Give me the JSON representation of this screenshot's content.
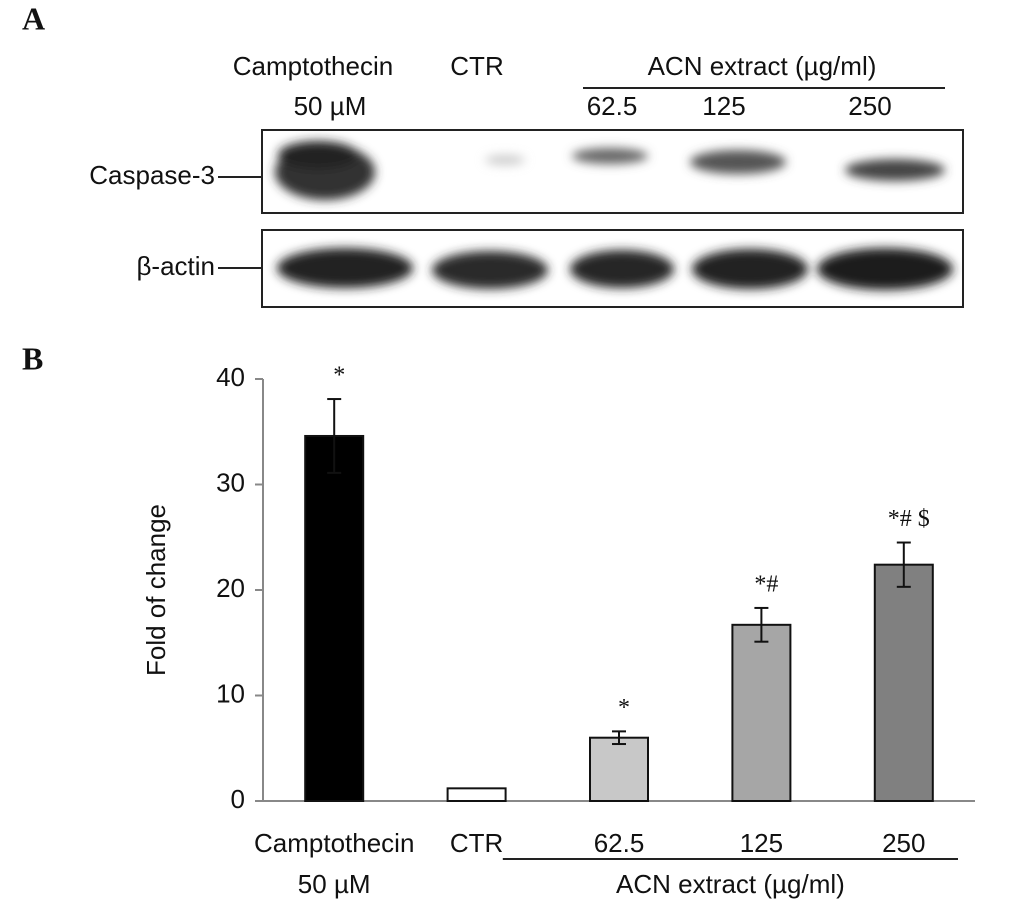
{
  "panel_labels": [
    "A",
    "B"
  ],
  "blot": {
    "treatment_labels": [
      "Camptothecin",
      "CTR"
    ],
    "dose_label": "50 µM",
    "group_label": "ACN extract (µg/ml)",
    "concentrations": [
      "62.5",
      "125",
      "250"
    ],
    "proteins": [
      "Caspase-3",
      "β-actin"
    ]
  },
  "chart_data": {
    "type": "bar",
    "categories": [
      "Camptothecin",
      "CTR",
      "62.5",
      "125",
      "250"
    ],
    "category_sublabels": [
      "50 µM",
      null,
      null,
      null,
      null
    ],
    "x_group_label": "ACN extract (µg/ml)",
    "values": [
      34.6,
      1.2,
      6.0,
      16.7,
      22.4
    ],
    "errors": [
      3.5,
      null,
      0.6,
      1.6,
      2.1
    ],
    "annotations": [
      "*",
      null,
      "*",
      "*#",
      "*# $"
    ],
    "colors": [
      "#000000",
      "#ffffff",
      "#c8c8c8",
      "#a6a6a6",
      "#808080"
    ],
    "ylabel": "Fold of change",
    "ylim": [
      0,
      40
    ],
    "yticks": [
      0,
      10,
      20,
      30,
      40
    ],
    "grid": false
  }
}
